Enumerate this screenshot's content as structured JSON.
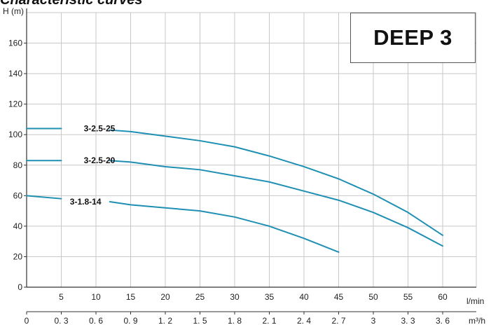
{
  "title": "Characteristic curves",
  "model_box": {
    "label": "DEEP 3",
    "stroke_color": "#555555"
  },
  "chart_data": {
    "type": "line",
    "title": "",
    "ylabel": "H (m)",
    "xlabel": "l/min",
    "secondary_xlabel": "m³/h",
    "ylim": [
      0,
      180
    ],
    "xlim": [
      0,
      65
    ],
    "y_ticks": [
      0,
      20,
      40,
      60,
      80,
      100,
      120,
      140,
      160
    ],
    "x_ticks": [
      5,
      10,
      15,
      20,
      25,
      30,
      35,
      40,
      45,
      50,
      55,
      60
    ],
    "secondary_x_ticks": [
      {
        "lpm": 0,
        "label": "0"
      },
      {
        "lpm": 5,
        "label": "0. 3"
      },
      {
        "lpm": 10,
        "label": "0. 6"
      },
      {
        "lpm": 15,
        "label": "0. 9"
      },
      {
        "lpm": 20,
        "label": "1. 2"
      },
      {
        "lpm": 25,
        "label": "1. 5"
      },
      {
        "lpm": 30,
        "label": "1. 8"
      },
      {
        "lpm": 35,
        "label": "2. 1"
      },
      {
        "lpm": 40,
        "label": "2. 4"
      },
      {
        "lpm": 45,
        "label": "2. 7"
      },
      {
        "lpm": 50,
        "label": "3"
      },
      {
        "lpm": 55,
        "label": "3. 3"
      },
      {
        "lpm": 60,
        "label": "3. 6"
      }
    ],
    "grid": true,
    "line_color": "#1f8fb3",
    "grid_color": "#c8c8c8",
    "series": [
      {
        "name": "3-2.5-25",
        "label_at": [
          10.5,
          104
        ],
        "segments": [
          [
            [
              0,
              104
            ],
            [
              5,
              104
            ]
          ],
          [
            [
              12,
              103
            ],
            [
              15,
              102
            ],
            [
              20,
              99
            ],
            [
              25,
              96
            ],
            [
              30,
              92
            ],
            [
              35,
              86
            ],
            [
              40,
              79
            ],
            [
              45,
              71
            ],
            [
              50,
              61
            ],
            [
              55,
              49
            ],
            [
              60,
              34
            ]
          ]
        ]
      },
      {
        "name": "3-2.5-20",
        "label_at": [
          10.5,
          83
        ],
        "segments": [
          [
            [
              0,
              83
            ],
            [
              5,
              83
            ]
          ],
          [
            [
              12,
              83
            ],
            [
              15,
              82
            ],
            [
              20,
              79
            ],
            [
              25,
              77
            ],
            [
              30,
              73
            ],
            [
              35,
              69
            ],
            [
              40,
              63
            ],
            [
              45,
              57
            ],
            [
              50,
              49
            ],
            [
              55,
              39
            ],
            [
              60,
              27
            ]
          ]
        ]
      },
      {
        "name": "3-1.8-14",
        "label_at": [
          8.5,
          56
        ],
        "segments": [
          [
            [
              0,
              60
            ],
            [
              5,
              58
            ]
          ],
          [
            [
              12,
              56
            ],
            [
              15,
              54
            ],
            [
              20,
              52
            ],
            [
              25,
              50
            ],
            [
              30,
              46
            ],
            [
              35,
              40
            ],
            [
              40,
              32
            ],
            [
              45,
              23
            ]
          ]
        ]
      }
    ]
  }
}
